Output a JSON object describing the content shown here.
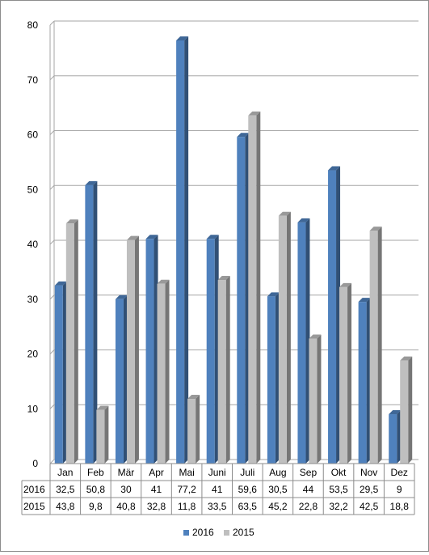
{
  "chart_data": {
    "type": "bar",
    "categories": [
      "Jan",
      "Feb",
      "Mär",
      "Apr",
      "Mai",
      "Juni",
      "Juli",
      "Aug",
      "Sep",
      "Okt",
      "Nov",
      "Dez"
    ],
    "series": [
      {
        "name": "2016",
        "color": "#4f81bd",
        "values": [
          32.5,
          50.8,
          30,
          41,
          77.2,
          41,
          59.6,
          30.5,
          44,
          53.5,
          29.5,
          9
        ],
        "labels": [
          "32,5",
          "50,8",
          "30",
          "41",
          "77,2",
          "41",
          "59,6",
          "30,5",
          "44",
          "53,5",
          "29,5",
          "9"
        ]
      },
      {
        "name": "2015",
        "color": "#bfbfbf",
        "values": [
          43.8,
          9.8,
          40.8,
          32.8,
          11.8,
          33.5,
          63.5,
          45.2,
          22.8,
          32.2,
          42.5,
          18.8
        ],
        "labels": [
          "43,8",
          "9,8",
          "40,8",
          "32,8",
          "11,8",
          "33,5",
          "63,5",
          "45,2",
          "22,8",
          "32,2",
          "42,5",
          "18,8"
        ]
      }
    ],
    "ylim": [
      0,
      80
    ],
    "yticks": [
      0,
      10,
      20,
      30,
      40,
      50,
      60,
      70,
      80
    ],
    "grid": true,
    "data_table": true,
    "legend_position": "bottom",
    "style": "3d-columns"
  }
}
